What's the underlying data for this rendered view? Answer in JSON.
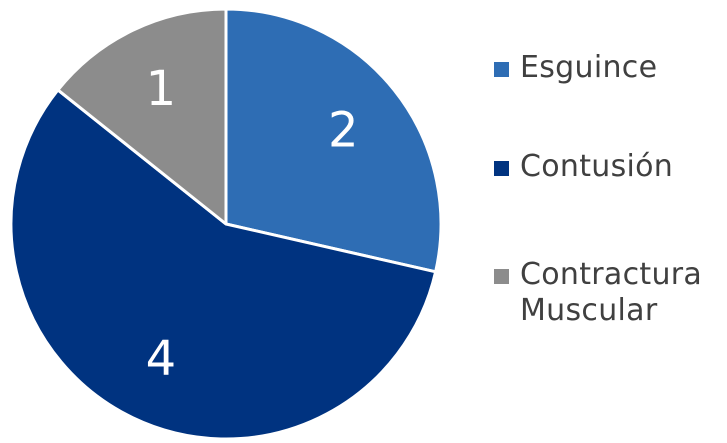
{
  "chart_data": {
    "type": "pie",
    "title": "",
    "start_angle_deg": 0,
    "direction": "clockwise",
    "slices": [
      {
        "label": "Esguince",
        "value": 2,
        "color": "#2E6DB4"
      },
      {
        "label": "Contusión",
        "value": 4,
        "color": "#003380"
      },
      {
        "label": "Contractura\nMuscular",
        "value": 1,
        "color": "#8C8C8C"
      }
    ],
    "data_label_color": "#FFFFFF",
    "slice_border_color": "#FFFFFF",
    "legend_text_color": "#404040",
    "legend_position": "right"
  }
}
